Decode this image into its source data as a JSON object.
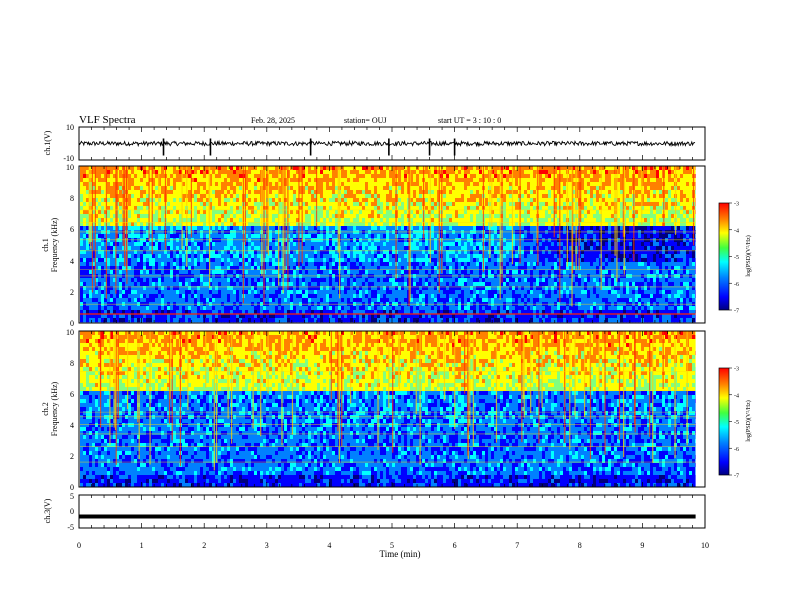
{
  "header": {
    "title": "VLF Spectra",
    "date": "Feb. 28, 2025",
    "station": "station= OUJ",
    "start": "start  UT =  3 : 10 : 0"
  },
  "colors": {
    "spectrogram_scale": [
      "#00007f",
      "#0000ff",
      "#0080ff",
      "#00ffff",
      "#80ff80",
      "#ffff00",
      "#ff8000",
      "#ff0000",
      "#7f0000"
    ],
    "trace": "#000000",
    "grid_lines": "#ffe000"
  },
  "chart_data": [
    {
      "type": "line",
      "title": "",
      "ylabel": "ch.1(V)",
      "ylim": [
        -10,
        10
      ],
      "yticks": [
        "10",
        "-10"
      ],
      "xlim": [
        0,
        10
      ],
      "description_values": {
        "baseline": 0,
        "noise_amplitude_approx": 1.5
      },
      "spikes_x": [
        1.35,
        2.1,
        3.7,
        4.95,
        5.6,
        6.0
      ]
    },
    {
      "type": "heatmap",
      "ylabel": "ch.1\nFrequency (kHz)",
      "ylim": [
        0,
        10
      ],
      "yticks": [
        "0",
        "2",
        "4",
        "6",
        "8",
        "10"
      ],
      "xlim": [
        0,
        9.8
      ],
      "colorbar": {
        "label": "log(PSD)(V²/Hz)",
        "range": [
          -7,
          -3
        ],
        "ticks": [
          "-3",
          "-4",
          "-5",
          "-6",
          "-7"
        ]
      }
    },
    {
      "type": "heatmap",
      "ylabel": "ch.2\nFrequency (kHz)",
      "ylim": [
        0,
        10
      ],
      "yticks": [
        "0",
        "2",
        "4",
        "6",
        "8",
        "10"
      ],
      "xlim": [
        0,
        9.8
      ],
      "colorbar": {
        "label": "log(PSD)(V²/Hz)",
        "range": [
          -7,
          -3
        ],
        "ticks": [
          "-3",
          "-4",
          "-5",
          "-6",
          "-7"
        ]
      }
    },
    {
      "type": "line",
      "ylabel": "ch.3(V)",
      "ylim": [
        -5,
        5
      ],
      "yticks": [
        "5",
        "0",
        "-5"
      ],
      "xlim": [
        0,
        10
      ],
      "xlabel": "Time (min)",
      "xticks": [
        "0",
        "1",
        "2",
        "3",
        "4",
        "5",
        "6",
        "7",
        "8",
        "9",
        "10"
      ],
      "constant_value": -1.5
    }
  ]
}
